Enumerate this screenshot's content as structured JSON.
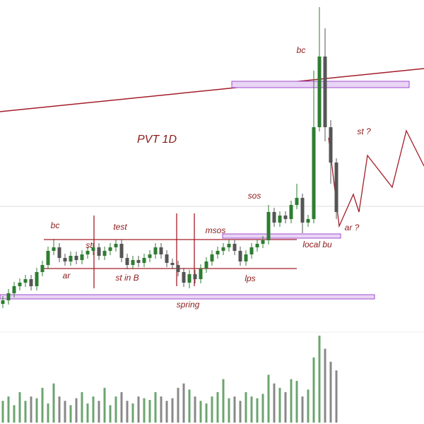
{
  "chart_data": {
    "type": "candlestick",
    "title": "PVT 1D",
    "open": [
      170,
      175,
      185,
      195,
      200,
      205,
      195,
      215,
      225,
      245,
      250,
      235,
      230,
      238,
      232,
      240,
      245,
      250,
      238,
      245,
      250,
      255,
      235,
      225,
      232,
      228,
      235,
      240,
      250,
      240,
      228,
      225,
      215,
      200,
      212,
      205,
      220,
      230,
      240,
      245,
      250,
      255,
      245,
      230,
      240,
      250,
      255,
      260,
      300,
      285,
      295,
      290,
      310,
      320,
      285,
      290,
      420,
      520,
      420,
      370
    ],
    "high": [
      181,
      191,
      201,
      206,
      211,
      211,
      221,
      231,
      251,
      262,
      256,
      241,
      244,
      244,
      246,
      251,
      256,
      256,
      251,
      256,
      261,
      261,
      241,
      238,
      238,
      241,
      246,
      256,
      256,
      246,
      234,
      231,
      221,
      218,
      218,
      226,
      236,
      246,
      251,
      256,
      261,
      261,
      251,
      246,
      256,
      261,
      266,
      310,
      306,
      301,
      301,
      316,
      340,
      326,
      296,
      500,
      590,
      560,
      430,
      376
    ],
    "low": [
      164,
      169,
      179,
      189,
      194,
      189,
      189,
      209,
      219,
      239,
      229,
      224,
      224,
      226,
      226,
      234,
      239,
      232,
      232,
      239,
      244,
      229,
      219,
      219,
      222,
      222,
      229,
      234,
      234,
      222,
      219,
      209,
      194,
      192,
      199,
      199,
      214,
      224,
      234,
      239,
      244,
      239,
      224,
      224,
      234,
      244,
      249,
      254,
      279,
      279,
      284,
      284,
      304,
      270,
      279,
      284,
      414,
      400,
      340,
      290
    ],
    "close": [
      175,
      185,
      195,
      200,
      205,
      195,
      215,
      225,
      245,
      250,
      235,
      230,
      238,
      232,
      240,
      245,
      250,
      238,
      245,
      250,
      255,
      235,
      225,
      232,
      228,
      235,
      240,
      250,
      240,
      228,
      225,
      215,
      200,
      212,
      205,
      220,
      230,
      240,
      245,
      250,
      255,
      245,
      230,
      240,
      250,
      255,
      260,
      300,
      285,
      295,
      290,
      310,
      320,
      285,
      290,
      420,
      520,
      420,
      370,
      300
    ],
    "volume": [
      25,
      30,
      20,
      35,
      25,
      30,
      28,
      40,
      22,
      45,
      30,
      25,
      20,
      28,
      35,
      22,
      30,
      25,
      40,
      20,
      30,
      35,
      25,
      22,
      30,
      28,
      26,
      35,
      30,
      25,
      28,
      40,
      45,
      38,
      30,
      25,
      22,
      30,
      35,
      50,
      28,
      30,
      25,
      35,
      30,
      28,
      33,
      55,
      45,
      40,
      35,
      50,
      48,
      30,
      38,
      75,
      100,
      85,
      70,
      60
    ],
    "ylim": [
      0,
      600
    ],
    "volume_lim": [
      0,
      100
    ],
    "up_color": "#2e7d32",
    "down_color": "#555555",
    "annotations": [
      "bc",
      "bc",
      "st",
      "test",
      "ar",
      "st in B",
      "msos",
      "sos",
      "local bu",
      "lps",
      "spring",
      "st ?",
      "ar ?"
    ]
  }
}
